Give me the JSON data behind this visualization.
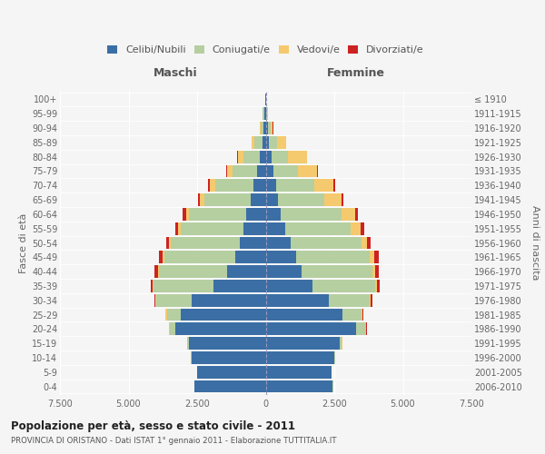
{
  "age_groups": [
    "0-4",
    "5-9",
    "10-14",
    "15-19",
    "20-24",
    "25-29",
    "30-34",
    "35-39",
    "40-44",
    "45-49",
    "50-54",
    "55-59",
    "60-64",
    "65-69",
    "70-74",
    "75-79",
    "80-84",
    "85-89",
    "90-94",
    "95-99",
    "100+"
  ],
  "birth_years": [
    "2006-2010",
    "2001-2005",
    "1996-2000",
    "1991-1995",
    "1986-1990",
    "1981-1985",
    "1976-1980",
    "1971-1975",
    "1966-1970",
    "1961-1965",
    "1956-1960",
    "1951-1955",
    "1946-1950",
    "1941-1945",
    "1936-1940",
    "1931-1935",
    "1926-1930",
    "1921-1925",
    "1916-1920",
    "1911-1915",
    "≤ 1910"
  ],
  "males": {
    "celibi": [
      2600,
      2500,
      2700,
      2800,
      3300,
      3100,
      2700,
      1900,
      1400,
      1100,
      950,
      800,
      700,
      550,
      450,
      300,
      220,
      120,
      80,
      50,
      20
    ],
    "coniugati": [
      5,
      10,
      30,
      50,
      200,
      500,
      1300,
      2200,
      2500,
      2600,
      2500,
      2300,
      2100,
      1700,
      1400,
      900,
      600,
      300,
      100,
      50,
      10
    ],
    "vedovi": [
      2,
      2,
      5,
      5,
      30,
      50,
      10,
      20,
      30,
      50,
      60,
      80,
      100,
      150,
      200,
      200,
      200,
      80,
      20,
      5,
      2
    ],
    "divorziati": [
      2,
      2,
      3,
      5,
      10,
      20,
      50,
      80,
      130,
      130,
      120,
      130,
      120,
      80,
      60,
      30,
      20,
      10,
      5,
      2,
      1
    ]
  },
  "females": {
    "nubili": [
      2450,
      2400,
      2500,
      2700,
      3300,
      2800,
      2300,
      1700,
      1300,
      1100,
      900,
      700,
      550,
      450,
      380,
      280,
      200,
      100,
      80,
      30,
      20
    ],
    "coniugate": [
      5,
      10,
      40,
      80,
      350,
      700,
      1500,
      2300,
      2600,
      2700,
      2600,
      2400,
      2200,
      1700,
      1400,
      900,
      600,
      300,
      100,
      30,
      5
    ],
    "vedove": [
      2,
      2,
      5,
      5,
      20,
      30,
      30,
      50,
      80,
      150,
      200,
      350,
      500,
      600,
      700,
      700,
      700,
      350,
      80,
      20,
      5
    ],
    "divorziate": [
      2,
      2,
      3,
      5,
      10,
      20,
      50,
      90,
      150,
      160,
      120,
      130,
      120,
      70,
      40,
      20,
      15,
      10,
      5,
      2,
      1
    ]
  },
  "colors": {
    "celibi": "#3b6ea5",
    "coniugati": "#b5cfa0",
    "vedovi": "#f5c96e",
    "divorziati": "#cc2222"
  },
  "xlim": 7500,
  "xtick_labels": [
    "7.500",
    "5.000",
    "2.500",
    "0",
    "2.500",
    "5.000",
    "7.500"
  ],
  "title": "Popolazione per età, sesso e stato civile - 2011",
  "subtitle": "PROVINCIA DI ORISTANO - Dati ISTAT 1° gennaio 2011 - Elaborazione TUTTITALIA.IT",
  "ylabel_left": "Fasce di età",
  "ylabel_right": "Anni di nascita",
  "header_left": "Maschi",
  "header_right": "Femmine",
  "legend_labels": [
    "Celibi/Nubili",
    "Coniugati/e",
    "Vedovi/e",
    "Divorziati/e"
  ],
  "bg_color": "#f5f5f5"
}
